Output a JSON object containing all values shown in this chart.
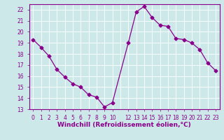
{
  "x": [
    0,
    1,
    2,
    3,
    4,
    5,
    6,
    7,
    8,
    9,
    10,
    12,
    13,
    14,
    15,
    16,
    17,
    18,
    19,
    20,
    21,
    22,
    23
  ],
  "y": [
    19.3,
    18.6,
    17.8,
    16.6,
    15.9,
    15.3,
    15.0,
    14.3,
    14.1,
    13.2,
    13.6,
    19.0,
    21.8,
    22.3,
    21.3,
    20.6,
    20.5,
    19.4,
    19.3,
    19.0,
    18.4,
    17.2,
    16.5
  ],
  "line_color": "#8B008B",
  "marker": "D",
  "marker_size": 2.5,
  "bg_color": "#cce8e8",
  "grid_color": "#aad4d4",
  "xlabel": "Windchill (Refroidissement éolien,°C)",
  "xlabel_color": "#8B008B",
  "tick_color": "#8B008B",
  "spine_color": "#8B008B",
  "ylim": [
    13,
    22.5
  ],
  "yticks": [
    13,
    14,
    15,
    16,
    17,
    18,
    19,
    20,
    21,
    22
  ],
  "xlim": [
    -0.5,
    23.5
  ],
  "xtick_positions": [
    0,
    1,
    2,
    3,
    4,
    5,
    6,
    7,
    8,
    9,
    10,
    12,
    13,
    14,
    15,
    16,
    17,
    18,
    19,
    20,
    21,
    22,
    23
  ],
  "xtick_labels": [
    "0",
    "1",
    "2",
    "3",
    "4",
    "5",
    "6",
    "7",
    "8",
    "9",
    "10",
    "12",
    "13",
    "14",
    "15",
    "16",
    "17",
    "18",
    "19",
    "20",
    "21",
    "22",
    "23"
  ],
  "title_fontsize": 6.5,
  "tick_fontsize": 5.5
}
